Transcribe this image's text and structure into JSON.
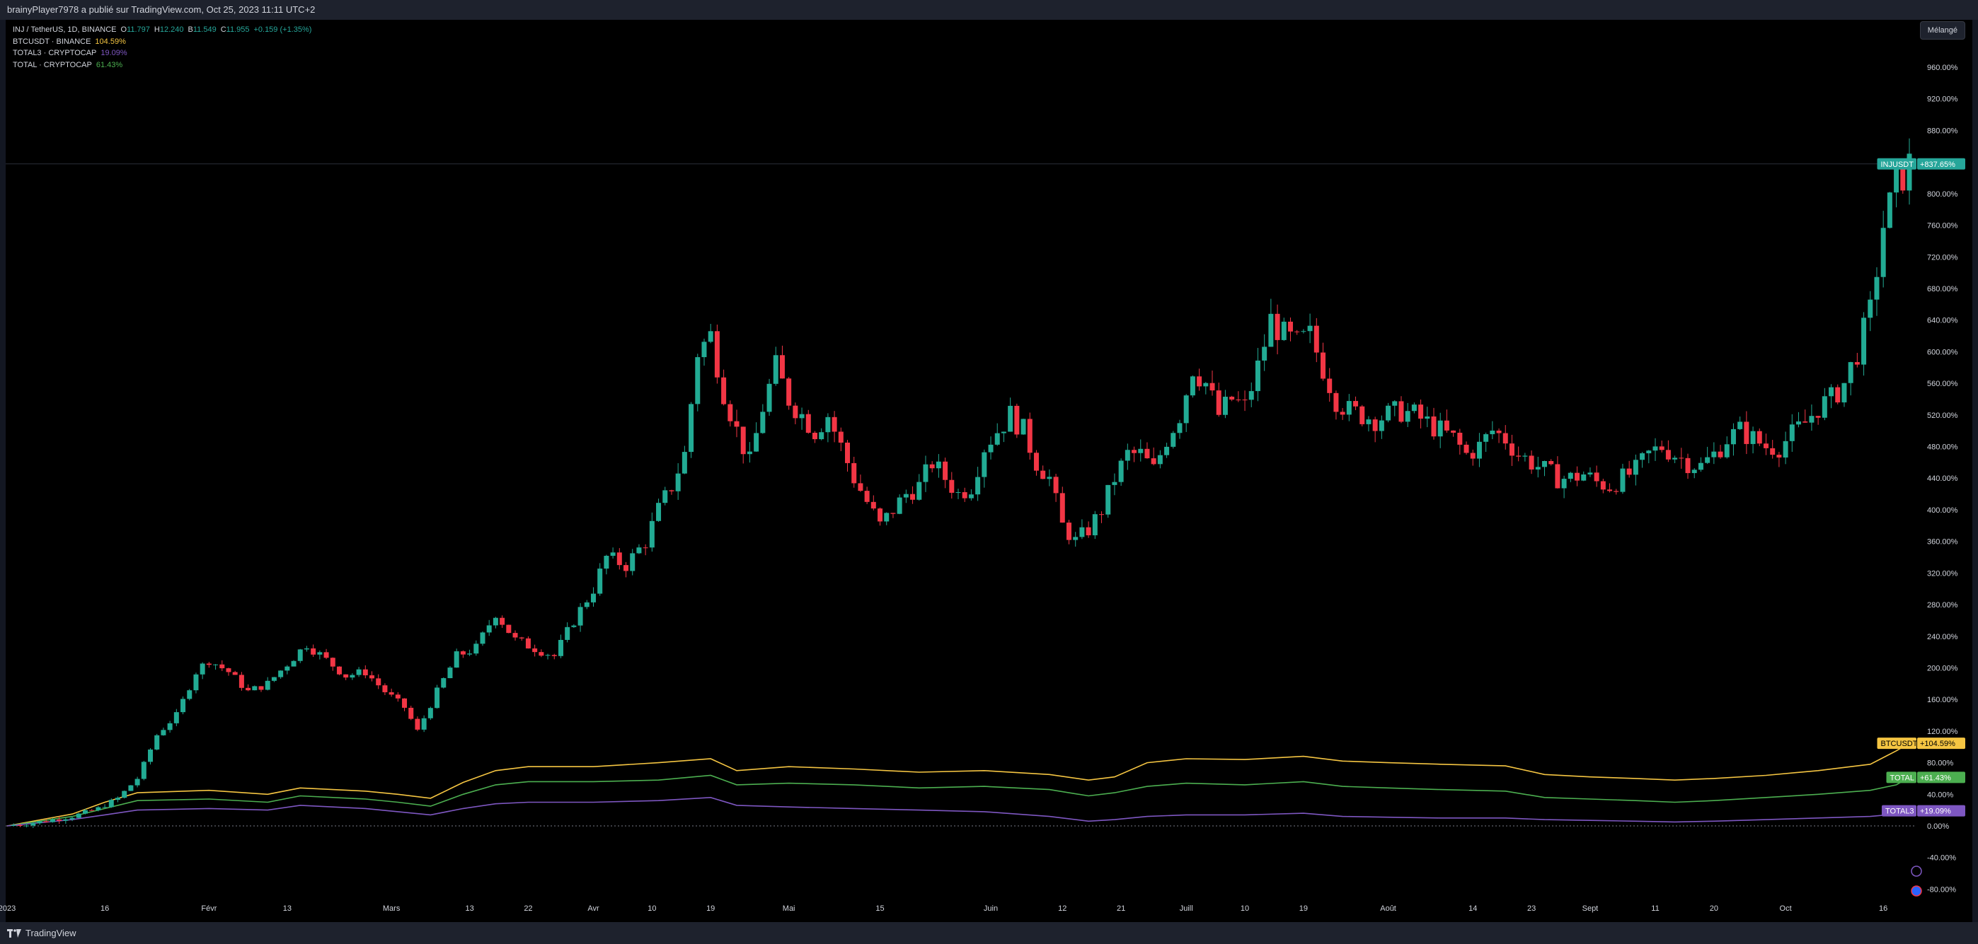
{
  "publisher_line": "brainyPlayer7978 a publié sur TradingView.com, Oct 25, 2023 11:11 UTC+2",
  "legend": {
    "main": {
      "symbol": "INJ / TetherUS, 1D, BINANCE",
      "o_label": "O",
      "o_value": "11.797",
      "h_label": "H",
      "h_value": "12.240",
      "b_label": "B",
      "b_value": "11.549",
      "c_label": "C",
      "c_value": "11.955",
      "change": "+0.159 (+1.35%)"
    },
    "overlays": [
      {
        "name": "BTCUSDT · BINANCE",
        "value": "104.59%",
        "color": "#f5c542"
      },
      {
        "name": "TOTAL3 · CRYPTOCAP",
        "value": "19.09%",
        "color": "#7e57c2"
      },
      {
        "name": "TOTAL · CRYPTOCAP",
        "value": "61.43%",
        "color": "#4caf50"
      }
    ]
  },
  "scale_button": "Mélangé",
  "brand": "TradingView",
  "colors": {
    "up": "#26a69a",
    "up_candle": "#22ab94",
    "down": "#f23645",
    "btc": "#f5c542",
    "total": "#4caf50",
    "total3": "#7e57c2",
    "injusdt_tag": "#26a69a"
  },
  "chart_data": {
    "type": "line",
    "title": "",
    "y_axis_ticks": [
      "960.00%",
      "920.00%",
      "880.00%",
      "840.00%",
      "800.00%",
      "760.00%",
      "720.00%",
      "680.00%",
      "640.00%",
      "600.00%",
      "560.00%",
      "520.00%",
      "480.00%",
      "440.00%",
      "400.00%",
      "360.00%",
      "320.00%",
      "280.00%",
      "240.00%",
      "200.00%",
      "160.00%",
      "120.00%",
      "80.00%",
      "40.00%",
      "0.00%",
      "-40.00%",
      "-80.00%"
    ],
    "y_tick_values": [
      960,
      920,
      880,
      840,
      800,
      760,
      720,
      680,
      640,
      600,
      560,
      520,
      480,
      440,
      400,
      360,
      320,
      280,
      240,
      200,
      160,
      120,
      80,
      40,
      0,
      -40,
      -80
    ],
    "ylim": [
      -120,
      1000
    ],
    "x_axis_ticks": [
      {
        "label": "2023",
        "day": 0
      },
      {
        "label": "16",
        "day": 15
      },
      {
        "label": "Févr",
        "day": 31
      },
      {
        "label": "13",
        "day": 43
      },
      {
        "label": "Mars",
        "day": 59
      },
      {
        "label": "13",
        "day": 71
      },
      {
        "label": "22",
        "day": 80
      },
      {
        "label": "Avr",
        "day": 90
      },
      {
        "label": "10",
        "day": 99
      },
      {
        "label": "19",
        "day": 108
      },
      {
        "label": "Mai",
        "day": 120
      },
      {
        "label": "15",
        "day": 134
      },
      {
        "label": "Juin",
        "day": 151
      },
      {
        "label": "12",
        "day": 162
      },
      {
        "label": "21",
        "day": 171
      },
      {
        "label": "Juill",
        "day": 181
      },
      {
        "label": "10",
        "day": 190
      },
      {
        "label": "19",
        "day": 199
      },
      {
        "label": "Août",
        "day": 212
      },
      {
        "label": "14",
        "day": 225
      },
      {
        "label": "23",
        "day": 234
      },
      {
        "label": "Sept",
        "day": 243
      },
      {
        "label": "11",
        "day": 253
      },
      {
        "label": "20",
        "day": 262
      },
      {
        "label": "Oct",
        "day": 273
      },
      {
        "label": "16",
        "day": 288
      }
    ],
    "xlim_days": [
      0,
      298
    ],
    "price_tags": [
      {
        "name": "INJUSDT",
        "value": "+837.65%",
        "level": 837.65,
        "color": "#26a69a"
      },
      {
        "name": "BTCUSDT",
        "value": "+104.59%",
        "level": 104.59,
        "color": "#f5c542"
      },
      {
        "name": "TOTAL",
        "value": "+61.43%",
        "level": 61.43,
        "color": "#4caf50"
      },
      {
        "name": "TOTAL3",
        "value": "+19.09%",
        "level": 19.09,
        "color": "#7e57c2"
      }
    ],
    "series": [
      {
        "name": "INJUSDT",
        "kind": "candlestick_close_path",
        "points": [
          [
            0,
            0
          ],
          [
            5,
            5
          ],
          [
            10,
            12
          ],
          [
            14,
            22
          ],
          [
            17,
            35
          ],
          [
            20,
            60
          ],
          [
            23,
            115
          ],
          [
            26,
            140
          ],
          [
            29,
            195
          ],
          [
            31,
            210
          ],
          [
            34,
            195
          ],
          [
            37,
            170
          ],
          [
            40,
            180
          ],
          [
            43,
            205
          ],
          [
            46,
            230
          ],
          [
            49,
            210
          ],
          [
            52,
            190
          ],
          [
            55,
            195
          ],
          [
            58,
            170
          ],
          [
            61,
            150
          ],
          [
            63,
            120
          ],
          [
            66,
            170
          ],
          [
            69,
            215
          ],
          [
            72,
            225
          ],
          [
            75,
            270
          ],
          [
            78,
            235
          ],
          [
            81,
            225
          ],
          [
            84,
            215
          ],
          [
            87,
            260
          ],
          [
            90,
            300
          ],
          [
            92,
            340
          ],
          [
            95,
            330
          ],
          [
            98,
            360
          ],
          [
            100,
            400
          ],
          [
            102,
            430
          ],
          [
            104,
            470
          ],
          [
            106,
            600
          ],
          [
            108,
            620
          ],
          [
            110,
            550
          ],
          [
            112,
            500
          ],
          [
            114,
            460
          ],
          [
            116,
            530
          ],
          [
            118,
            580
          ],
          [
            120,
            540
          ],
          [
            122,
            520
          ],
          [
            124,
            500
          ],
          [
            126,
            520
          ],
          [
            128,
            480
          ],
          [
            130,
            440
          ],
          [
            132,
            410
          ],
          [
            134,
            380
          ],
          [
            136,
            400
          ],
          [
            138,
            420
          ],
          [
            140,
            430
          ],
          [
            142,
            460
          ],
          [
            144,
            440
          ],
          [
            146,
            420
          ],
          [
            148,
            430
          ],
          [
            150,
            480
          ],
          [
            152,
            500
          ],
          [
            154,
            520
          ],
          [
            156,
            500
          ],
          [
            158,
            460
          ],
          [
            160,
            440
          ],
          [
            162,
            380
          ],
          [
            164,
            360
          ],
          [
            166,
            375
          ],
          [
            168,
            400
          ],
          [
            170,
            440
          ],
          [
            172,
            470
          ],
          [
            174,
            470
          ],
          [
            176,
            450
          ],
          [
            178,
            490
          ],
          [
            180,
            520
          ],
          [
            182,
            580
          ],
          [
            184,
            560
          ],
          [
            186,
            520
          ],
          [
            188,
            540
          ],
          [
            190,
            530
          ],
          [
            192,
            580
          ],
          [
            194,
            640
          ],
          [
            196,
            620
          ],
          [
            198,
            610
          ],
          [
            200,
            620
          ],
          [
            202,
            580
          ],
          [
            204,
            540
          ],
          [
            206,
            525
          ],
          [
            208,
            520
          ],
          [
            210,
            515
          ],
          [
            212,
            520
          ],
          [
            214,
            525
          ],
          [
            216,
            520
          ],
          [
            218,
            510
          ],
          [
            220,
            500
          ],
          [
            222,
            490
          ],
          [
            224,
            470
          ],
          [
            226,
            480
          ],
          [
            228,
            500
          ],
          [
            230,
            490
          ],
          [
            232,
            470
          ],
          [
            234,
            460
          ],
          [
            236,
            450
          ],
          [
            238,
            440
          ],
          [
            240,
            440
          ],
          [
            242,
            445
          ],
          [
            244,
            435
          ],
          [
            246,
            430
          ],
          [
            248,
            440
          ],
          [
            250,
            450
          ],
          [
            252,
            470
          ],
          [
            254,
            480
          ],
          [
            256,
            470
          ],
          [
            258,
            460
          ],
          [
            260,
            455
          ],
          [
            262,
            470
          ],
          [
            264,
            490
          ],
          [
            266,
            500
          ],
          [
            268,
            490
          ],
          [
            270,
            480
          ],
          [
            272,
            480
          ],
          [
            274,
            495
          ],
          [
            276,
            510
          ],
          [
            278,
            530
          ],
          [
            280,
            540
          ],
          [
            282,
            560
          ],
          [
            284,
            600
          ],
          [
            286,
            650
          ],
          [
            288,
            760
          ],
          [
            290,
            810
          ],
          [
            292,
            837
          ]
        ]
      },
      {
        "name": "BTCUSDT",
        "points": [
          [
            0,
            0
          ],
          [
            10,
            15
          ],
          [
            15,
            30
          ],
          [
            20,
            42
          ],
          [
            31,
            45
          ],
          [
            40,
            40
          ],
          [
            45,
            48
          ],
          [
            55,
            44
          ],
          [
            60,
            40
          ],
          [
            65,
            35
          ],
          [
            70,
            55
          ],
          [
            75,
            70
          ],
          [
            80,
            75
          ],
          [
            90,
            75
          ],
          [
            100,
            80
          ],
          [
            108,
            85
          ],
          [
            112,
            70
          ],
          [
            120,
            75
          ],
          [
            130,
            72
          ],
          [
            140,
            68
          ],
          [
            150,
            70
          ],
          [
            160,
            65
          ],
          [
            166,
            58
          ],
          [
            170,
            62
          ],
          [
            175,
            80
          ],
          [
            181,
            85
          ],
          [
            190,
            84
          ],
          [
            199,
            88
          ],
          [
            205,
            82
          ],
          [
            212,
            80
          ],
          [
            220,
            78
          ],
          [
            230,
            76
          ],
          [
            236,
            65
          ],
          [
            243,
            62
          ],
          [
            250,
            60
          ],
          [
            256,
            58
          ],
          [
            262,
            60
          ],
          [
            270,
            64
          ],
          [
            278,
            70
          ],
          [
            286,
            78
          ],
          [
            290,
            95
          ],
          [
            292,
            104.59
          ]
        ]
      },
      {
        "name": "TOTAL",
        "points": [
          [
            0,
            0
          ],
          [
            10,
            12
          ],
          [
            15,
            22
          ],
          [
            20,
            32
          ],
          [
            31,
            34
          ],
          [
            40,
            30
          ],
          [
            45,
            38
          ],
          [
            55,
            34
          ],
          [
            60,
            30
          ],
          [
            65,
            25
          ],
          [
            70,
            40
          ],
          [
            75,
            52
          ],
          [
            80,
            56
          ],
          [
            90,
            56
          ],
          [
            100,
            58
          ],
          [
            108,
            64
          ],
          [
            112,
            52
          ],
          [
            120,
            54
          ],
          [
            130,
            52
          ],
          [
            140,
            48
          ],
          [
            150,
            50
          ],
          [
            160,
            46
          ],
          [
            166,
            38
          ],
          [
            170,
            42
          ],
          [
            175,
            50
          ],
          [
            181,
            54
          ],
          [
            190,
            52
          ],
          [
            199,
            56
          ],
          [
            205,
            50
          ],
          [
            212,
            48
          ],
          [
            220,
            46
          ],
          [
            230,
            44
          ],
          [
            236,
            36
          ],
          [
            243,
            34
          ],
          [
            250,
            32
          ],
          [
            256,
            30
          ],
          [
            262,
            32
          ],
          [
            270,
            36
          ],
          [
            278,
            40
          ],
          [
            286,
            45
          ],
          [
            290,
            52
          ],
          [
            292,
            61.43
          ]
        ]
      },
      {
        "name": "TOTAL3",
        "points": [
          [
            0,
            0
          ],
          [
            10,
            8
          ],
          [
            15,
            14
          ],
          [
            20,
            20
          ],
          [
            31,
            22
          ],
          [
            40,
            20
          ],
          [
            45,
            26
          ],
          [
            55,
            22
          ],
          [
            60,
            18
          ],
          [
            65,
            14
          ],
          [
            70,
            22
          ],
          [
            75,
            28
          ],
          [
            80,
            30
          ],
          [
            90,
            30
          ],
          [
            100,
            32
          ],
          [
            108,
            36
          ],
          [
            112,
            26
          ],
          [
            120,
            24
          ],
          [
            130,
            22
          ],
          [
            140,
            20
          ],
          [
            150,
            18
          ],
          [
            160,
            12
          ],
          [
            166,
            6
          ],
          [
            170,
            8
          ],
          [
            175,
            12
          ],
          [
            181,
            14
          ],
          [
            190,
            14
          ],
          [
            199,
            16
          ],
          [
            205,
            12
          ],
          [
            212,
            11
          ],
          [
            220,
            10
          ],
          [
            230,
            10
          ],
          [
            236,
            8
          ],
          [
            243,
            7
          ],
          [
            250,
            6
          ],
          [
            256,
            5
          ],
          [
            262,
            6
          ],
          [
            270,
            8
          ],
          [
            278,
            10
          ],
          [
            286,
            12
          ],
          [
            290,
            15
          ],
          [
            292,
            19.09
          ]
        ]
      }
    ]
  }
}
